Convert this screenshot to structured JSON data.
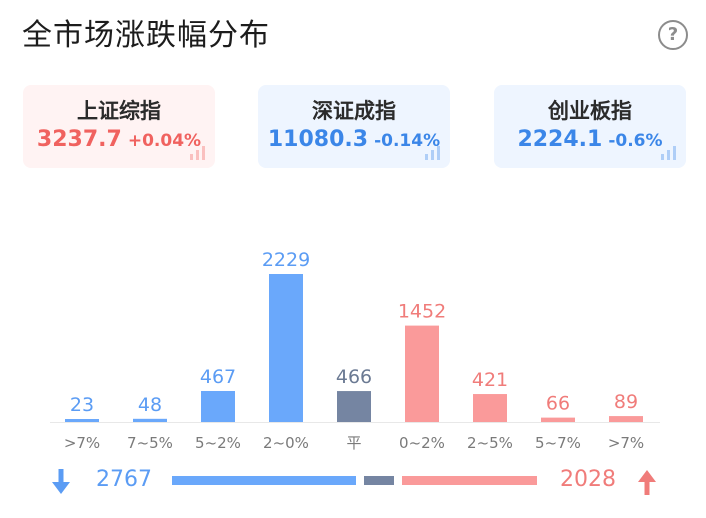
{
  "header": {
    "title": "全市场涨跌幅分布",
    "help_icon": "question-circle-icon"
  },
  "indices": [
    {
      "name": "上证综指",
      "price": "3237.7",
      "change": "+0.04%",
      "trend": "up"
    },
    {
      "name": "深证成指",
      "price": "11080.3",
      "change": "-0.14%",
      "trend": "down"
    },
    {
      "name": "创业板指",
      "price": "2224.1",
      "change": "-0.6%",
      "trend": "down"
    }
  ],
  "colors": {
    "down": "#6aa8fb",
    "flat": "#7585a2",
    "up": "#fa9a9a",
    "down_text": "#5b9cf4",
    "up_text": "#f07c7a",
    "flat_text": "#6b7a93"
  },
  "chart_data": {
    "type": "bar",
    "categories": [
      ">7%",
      "7~5%",
      "5~2%",
      "2~0%",
      "平",
      "0~2%",
      "2~5%",
      "5~7%",
      ">7%"
    ],
    "values": [
      23,
      48,
      467,
      2229,
      466,
      1452,
      421,
      66,
      89
    ],
    "groups": [
      "down",
      "down",
      "down",
      "down",
      "flat",
      "up",
      "up",
      "up",
      "up"
    ],
    "title": "",
    "xlabel": "",
    "ylabel": "",
    "ylim": [
      0,
      2229
    ],
    "grid": false,
    "legend": "none"
  },
  "summary": {
    "down_count": "2767",
    "up_count": "2028",
    "down_icon": "arrow-down-icon",
    "up_icon": "arrow-up-icon",
    "ratio": {
      "down": 2767,
      "flat": 466,
      "up": 2028
    }
  }
}
